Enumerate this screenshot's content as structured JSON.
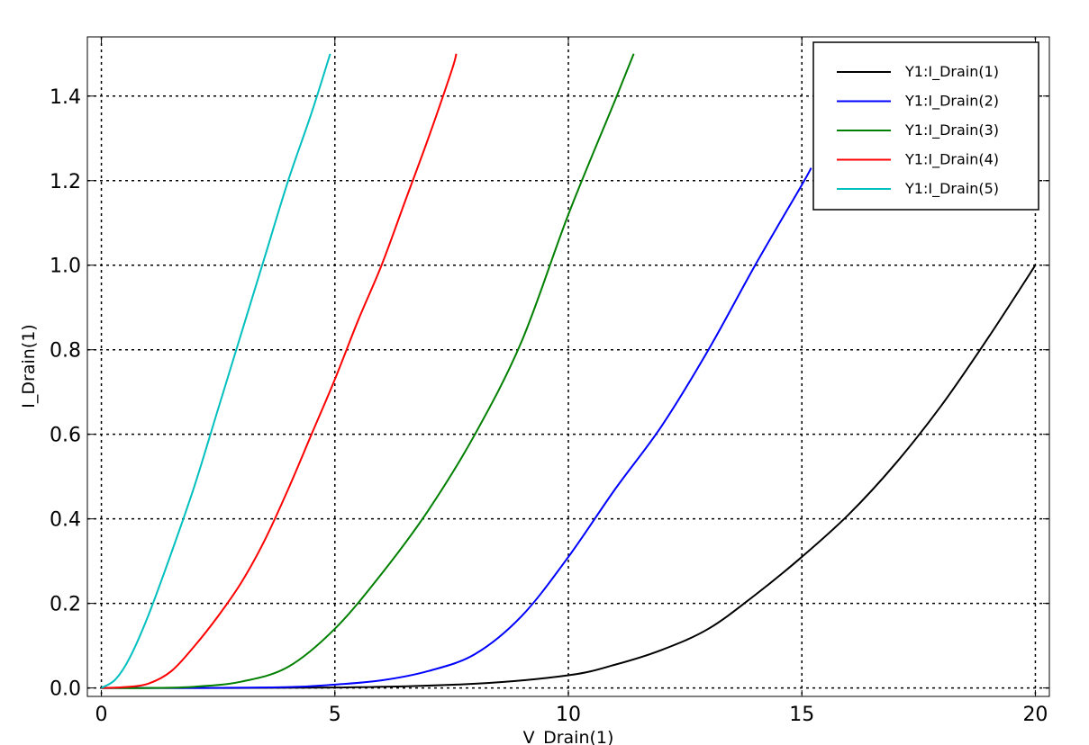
{
  "chart_data": {
    "type": "line",
    "title": "",
    "xlabel": "V_Drain(1)",
    "ylabel": "I_Drain(1)",
    "xlim": [
      -0.3,
      20.3
    ],
    "ylim": [
      -0.02,
      1.54
    ],
    "xticks": [
      0,
      5,
      10,
      15,
      20
    ],
    "xtick_labels": [
      "0",
      "5",
      "10",
      "15",
      "20"
    ],
    "yticks": [
      0.0,
      0.2,
      0.4,
      0.6,
      0.8,
      1.0,
      1.2,
      1.4
    ],
    "ytick_labels": [
      "0.0",
      "0.2",
      "0.4",
      "0.6",
      "0.8",
      "1.0",
      "1.2",
      "1.4"
    ],
    "grid": true,
    "legend_position": "top-right",
    "series": [
      {
        "name": "Y1:I_Drain(1)",
        "color": "#000000",
        "x": [
          0,
          5,
          8,
          10,
          11,
          12,
          13,
          14,
          15,
          16,
          17,
          18,
          19,
          20
        ],
        "y": [
          0.0,
          0.001,
          0.01,
          0.03,
          0.055,
          0.09,
          0.14,
          0.22,
          0.31,
          0.41,
          0.53,
          0.67,
          0.83,
          1.0
        ]
      },
      {
        "name": "Y1:I_Drain(2)",
        "color": "#0000ff",
        "x": [
          0,
          2,
          4,
          5,
          6,
          7,
          8,
          9,
          10,
          11,
          12,
          13,
          14,
          15,
          15.2
        ],
        "y": [
          0.0,
          0.0,
          0.002,
          0.008,
          0.018,
          0.04,
          0.08,
          0.17,
          0.31,
          0.47,
          0.62,
          0.8,
          1.0,
          1.19,
          1.23
        ]
      },
      {
        "name": "Y1:I_Drain(3)",
        "color": "#008000",
        "x": [
          0,
          1,
          2,
          3,
          4,
          5,
          6,
          7,
          8,
          9,
          10,
          11,
          11.4
        ],
        "y": [
          0.0,
          0.0,
          0.003,
          0.015,
          0.05,
          0.14,
          0.27,
          0.42,
          0.6,
          0.82,
          1.12,
          1.39,
          1.5
        ]
      },
      {
        "name": "Y1:I_Drain(4)",
        "color": "#ff0000",
        "x": [
          0,
          0.5,
          1,
          1.5,
          2,
          2.5,
          3,
          3.5,
          4,
          4.5,
          5,
          5.5,
          6,
          6.5,
          7,
          7.5,
          7.6
        ],
        "y": [
          0.0,
          0.002,
          0.01,
          0.04,
          0.1,
          0.17,
          0.25,
          0.35,
          0.47,
          0.6,
          0.73,
          0.87,
          1.0,
          1.15,
          1.3,
          1.46,
          1.5
        ]
      },
      {
        "name": "Y1:I_Drain(5)",
        "color": "#00bfbf",
        "x": [
          0,
          0.3,
          0.6,
          1,
          1.5,
          2,
          2.5,
          3,
          3.5,
          4,
          4.5,
          4.9
        ],
        "y": [
          0.0,
          0.02,
          0.07,
          0.17,
          0.32,
          0.48,
          0.66,
          0.84,
          1.02,
          1.2,
          1.36,
          1.5
        ]
      }
    ]
  }
}
